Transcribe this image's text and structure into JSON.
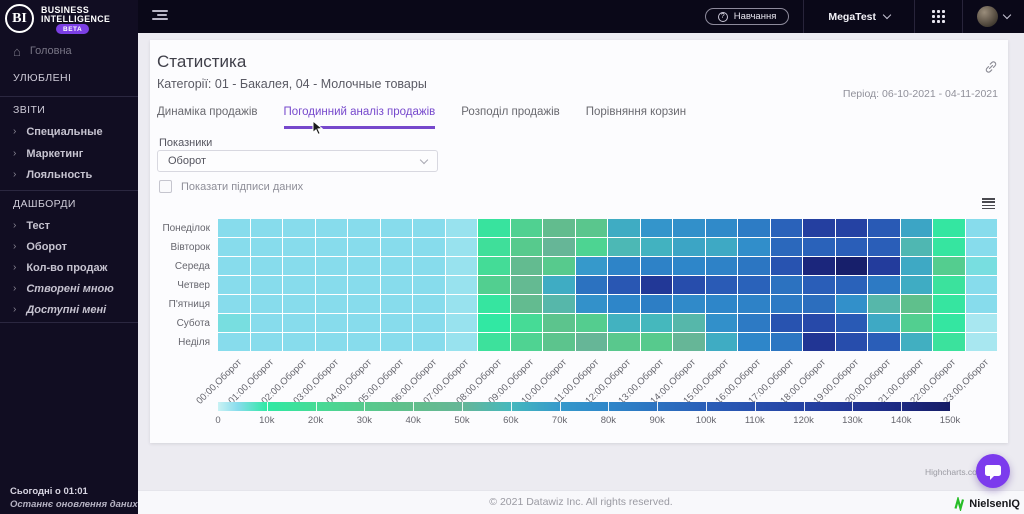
{
  "brand": {
    "logo": "BI",
    "line1": "BUSINESS",
    "line2": "INTELLIGENCE",
    "badge": "BETA"
  },
  "topbar": {
    "training": "Навчання",
    "account_name": "MegaTest"
  },
  "sidebar": {
    "home": "Головна",
    "sections": [
      {
        "title": "УЛЮБЛЕНІ",
        "items": []
      },
      {
        "title": "ЗВІТИ",
        "items": [
          {
            "label": "Специальные"
          },
          {
            "label": "Маркетинг"
          },
          {
            "label": "Лояльность"
          }
        ]
      },
      {
        "title": "ДАШБОРДИ",
        "items": [
          {
            "label": "Тест"
          },
          {
            "label": "Оборот"
          },
          {
            "label": "Кол-во продаж"
          },
          {
            "label": "Створені мною",
            "italic": true
          },
          {
            "label": "Доступні мені",
            "italic": true
          }
        ]
      }
    ],
    "footer_time": "Сьогодні о 01:01",
    "footer_note": "Останнє оновлення даних"
  },
  "page": {
    "title": "Статистика",
    "subtitle": "Категорії: 01 - Бакалея, 04 - Молочные товары",
    "period": "Період: 06-10-2021 - 04-11-2021",
    "tabs": [
      {
        "label": "Динаміка продажів",
        "active": false
      },
      {
        "label": "Погодинний аналіз продажів",
        "active": true
      },
      {
        "label": "Розподіл продажів",
        "active": false
      },
      {
        "label": "Порівняння корзин",
        "active": false
      }
    ],
    "controls": {
      "metric_label": "Показники",
      "metric_value": "Оборот",
      "checkbox_label": "Показати підписи даних",
      "checkbox_checked": false
    }
  },
  "footer": {
    "copyright": "© 2021 Datawiz Inc. All rights reserved.",
    "brand": "NielsenIQ"
  },
  "colors": {
    "accent": "#7648CC",
    "badge": "#7B3FE4",
    "chat_button": "#7C3BED",
    "nielsen_green": "#27BD27"
  },
  "chart_data": {
    "type": "heatmap",
    "title": "",
    "x_categories": [
      "00:00,Оборот",
      "01:00,Оборот",
      "02:00,Оборот",
      "03:00,Оборот",
      "04:00,Оборот",
      "05:00,Оборот",
      "06:00,Оборот",
      "07:00,Оборот",
      "08:00,Оборот",
      "09:00,Оборот",
      "10:00,Оборот",
      "11:00,Оборот",
      "12:00,Оборот",
      "13:00,Оборот",
      "14:00,Оборот",
      "15:00,Оборот",
      "16:00,Оборот",
      "17:00,Оборот",
      "18:00,Оборот",
      "19:00,Оборот",
      "20:00,Оборот",
      "21:00,Оборот",
      "22:00,Оборот",
      "23:00,Оборот"
    ],
    "y_categories": [
      "Понеділок",
      "Вівторок",
      "Середа",
      "Четвер",
      "П'ятниця",
      "Субота",
      "Неділя"
    ],
    "values_unit": "x1000 (Оборот)",
    "values": [
      [
        4,
        4,
        4,
        4,
        4,
        4,
        4,
        3,
        14,
        26,
        42,
        33,
        64,
        72,
        75,
        78,
        85,
        98,
        122,
        120,
        103,
        66,
        12,
        4
      ],
      [
        4,
        4,
        4,
        4,
        4,
        4,
        4,
        3,
        17,
        30,
        50,
        24,
        58,
        62,
        66,
        65,
        76,
        95,
        98,
        100,
        100,
        57,
        13,
        4
      ],
      [
        4,
        4,
        4,
        4,
        4,
        4,
        4,
        3,
        19,
        44,
        30,
        70,
        81,
        82,
        80,
        82,
        88,
        108,
        142,
        148,
        125,
        65,
        28,
        5
      ],
      [
        4,
        4,
        4,
        4,
        4,
        4,
        4,
        3,
        27,
        45,
        64,
        90,
        105,
        128,
        112,
        102,
        98,
        90,
        100,
        98,
        86,
        64,
        15,
        4
      ],
      [
        4,
        4,
        4,
        4,
        4,
        4,
        4,
        3,
        13,
        44,
        55,
        74,
        80,
        84,
        78,
        80,
        82,
        86,
        92,
        75,
        55,
        38,
        13,
        4
      ],
      [
        5,
        4,
        4,
        4,
        4,
        4,
        4,
        3,
        11,
        20,
        35,
        28,
        62,
        60,
        55,
        75,
        86,
        108,
        115,
        103,
        65,
        27,
        12,
        2
      ],
      [
        4,
        4,
        4,
        4,
        4,
        4,
        4,
        3,
        16,
        25,
        35,
        50,
        32,
        30,
        50,
        64,
        80,
        88,
        130,
        112,
        100,
        63,
        15,
        2
      ]
    ],
    "color_axis": {
      "min": 0,
      "max": 150000,
      "tick_labels": [
        "0",
        "10k",
        "20k",
        "30k",
        "40k",
        "50k",
        "60k",
        "70k",
        "80k",
        "90k",
        "100k",
        "110k",
        "120k",
        "130k",
        "140k",
        "150k"
      ],
      "stops_k": [
        [
          0,
          "#C9F2F4"
        ],
        [
          4,
          "#87DCEC"
        ],
        [
          10,
          "#2FE9A4"
        ],
        [
          20,
          "#46DB96"
        ],
        [
          30,
          "#57CA8D"
        ],
        [
          40,
          "#61BE8C"
        ],
        [
          50,
          "#66B697"
        ],
        [
          60,
          "#45B8BD"
        ],
        [
          70,
          "#3699CB"
        ],
        [
          80,
          "#2E86C9"
        ],
        [
          90,
          "#2C72C0"
        ],
        [
          100,
          "#2A5EB8"
        ],
        [
          110,
          "#2850AE"
        ],
        [
          120,
          "#2542A3"
        ],
        [
          130,
          "#213594"
        ],
        [
          140,
          "#1C2981"
        ],
        [
          150,
          "#161C66"
        ]
      ]
    },
    "legend_position": "bottom",
    "grid": false,
    "credit": "Highcharts.com"
  }
}
